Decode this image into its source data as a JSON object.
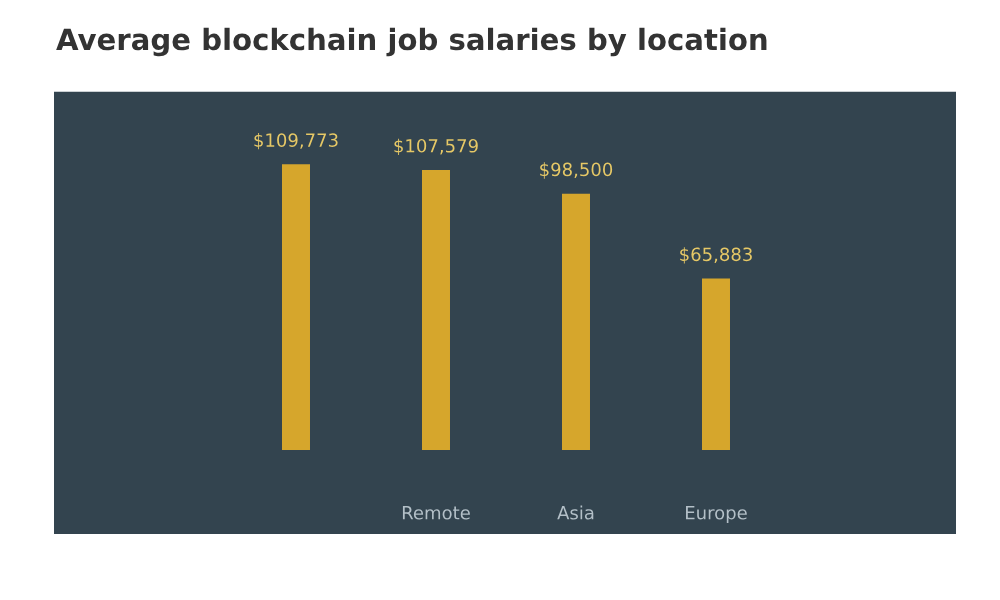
{
  "chart_data": {
    "type": "bar",
    "title": "Average blockchain job salaries by location",
    "categories": [
      null,
      "Remote",
      "Asia",
      "Europe"
    ],
    "values": [
      109773,
      107579,
      98500,
      65883
    ],
    "value_labels": [
      "$109,773",
      "$107,579",
      "$98,500",
      "$65,883"
    ],
    "color": "#d6a62c",
    "grid": false,
    "legend": false
  }
}
